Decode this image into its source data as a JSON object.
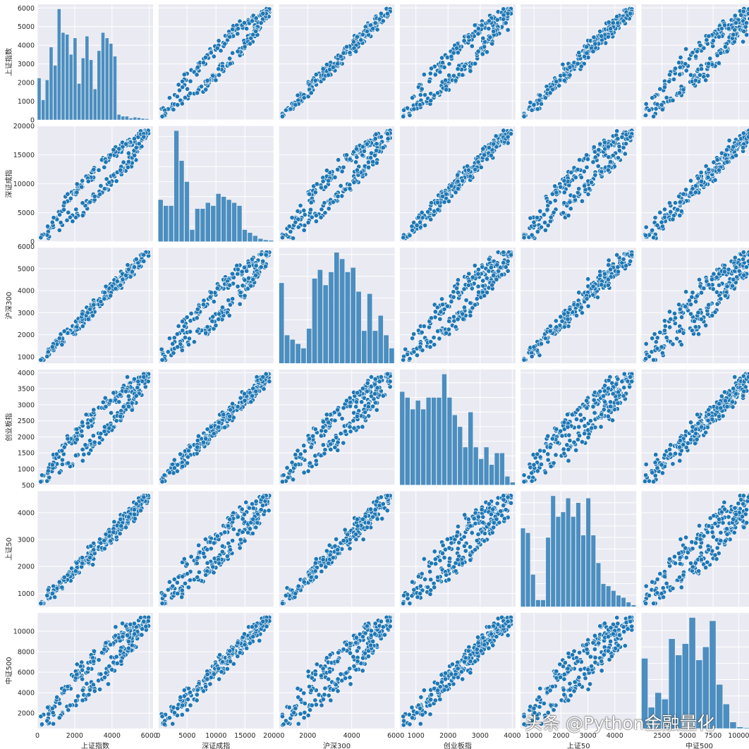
{
  "chart_data": {
    "type": "pairplot",
    "grid": true,
    "point_color": "#1f77b4",
    "bar_color": "#4c8ebf",
    "background": "#eaeaf2",
    "variables": [
      {
        "name": "上证指数",
        "range": [
          0,
          6200
        ],
        "ticks": [
          0,
          2000,
          4000,
          6000
        ],
        "yticks": [
          0,
          1000,
          2000,
          3000,
          4000,
          5000,
          6000
        ],
        "hist": [
          2300,
          1100,
          2200,
          4000,
          3000,
          6100,
          4800,
          4700,
          3600,
          4500,
          2000,
          3400,
          4600,
          3300,
          1700,
          3800,
          4800,
          4500,
          4200,
          3500,
          300,
          200,
          200,
          100,
          150,
          120,
          80,
          60,
          20
        ]
      },
      {
        "name": "深证成指",
        "range": [
          0,
          20000
        ],
        "ticks": [
          0,
          5000,
          10000,
          15000,
          20000
        ],
        "yticks": [
          0,
          5000,
          10000,
          15000,
          20000
        ],
        "hist": [
          1400,
          1200,
          1200,
          3700,
          2700,
          2000,
          400,
          1100,
          1100,
          1300,
          1200,
          1600,
          1500,
          1400,
          1300,
          1200,
          400,
          300,
          200,
          100,
          60,
          40
        ]
      },
      {
        "name": "沪深300",
        "range": [
          700,
          5950
        ],
        "ticks": [
          2000,
          4000,
          6000
        ],
        "yticks": [
          1000,
          2000,
          3000,
          4000,
          5000,
          6000
        ],
        "hist": [
          3700,
          1300,
          1100,
          900,
          700,
          1600,
          3900,
          4300,
          3600,
          4200,
          5100,
          4800,
          4200,
          4400,
          3300,
          1500,
          3200,
          1500,
          2200,
          1300,
          700
        ]
      },
      {
        "name": "创业板指",
        "range": [
          500,
          4100
        ],
        "ticks": [
          1000,
          2000,
          3000,
          4000
        ],
        "yticks": [
          500,
          1000,
          1500,
          2000,
          2500,
          3000,
          3500,
          4000
        ],
        "hist": [
          3200,
          3000,
          2600,
          2900,
          2600,
          3000,
          3000,
          3000,
          3800,
          3000,
          2400,
          2000,
          1300,
          2500,
          1300,
          900,
          1300,
          700,
          1100,
          1100,
          300,
          100
        ]
      },
      {
        "name": "上证50",
        "range": [
          500,
          4800
        ],
        "ticks": [
          1000,
          2000,
          3000,
          4000
        ],
        "yticks": [
          1000,
          2000,
          3000,
          4000
        ],
        "hist": [
          3400,
          3200,
          1400,
          300,
          300,
          3000,
          4800,
          3900,
          4100,
          4700,
          3900,
          4500,
          3100,
          4700,
          3100,
          1900,
          1000,
          900,
          700,
          500,
          400,
          200,
          80
        ]
      },
      {
        "name": "中证500",
        "range": [
          500,
          11800
        ],
        "ticks": [
          2500,
          5000,
          7500,
          10000
        ],
        "yticks": [
          2000,
          4000,
          6000,
          8000,
          10000,
          12000
        ],
        "hist": [
          4300,
          1300,
          2200,
          1800,
          5500,
          4500,
          5200,
          6800,
          4200,
          5000,
          6600,
          2700,
          1500,
          400,
          100,
          50,
          20
        ]
      }
    ]
  }
}
